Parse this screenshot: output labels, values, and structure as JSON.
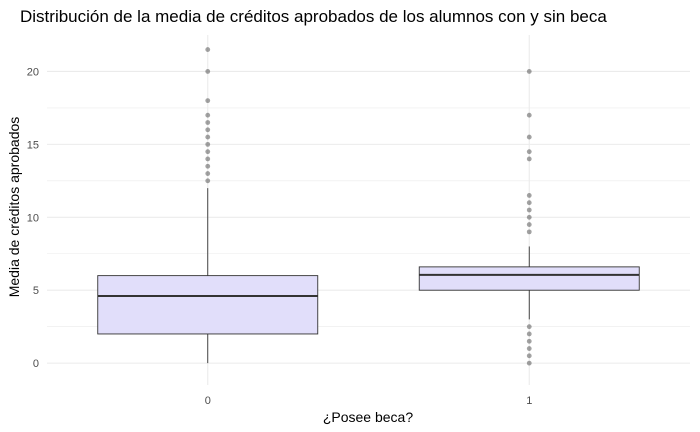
{
  "chart_data": {
    "type": "boxplot",
    "title": "Distribución de la media de créditos aprobados de los alumnos con y sin beca",
    "xlabel": "¿Posee beca?",
    "ylabel": "Media de créditos aprobados",
    "categories": [
      "0",
      "1"
    ],
    "ylim": [
      -1.5,
      22.5
    ],
    "yticks": [
      0,
      5,
      10,
      15,
      20
    ],
    "grid": true,
    "colors": {
      "box_fill": "#e1defa",
      "box_stroke": "#333333",
      "median": "#333333",
      "outlier": "#333333",
      "grid": "#ebebeb"
    },
    "boxes": [
      {
        "category": "0",
        "min": 0,
        "q1": 2,
        "median": 4.6,
        "q3": 6,
        "max": 12,
        "outliers": [
          12.5,
          13,
          13.5,
          14,
          14.5,
          15,
          15.5,
          16,
          16.5,
          17,
          18,
          20,
          21.5
        ]
      },
      {
        "category": "1",
        "min": 3,
        "q1": 5,
        "median": 6.05,
        "q3": 6.6,
        "max": 8,
        "outliers": [
          0,
          0.5,
          1,
          1.5,
          2,
          2.5,
          9,
          9.5,
          10,
          10.5,
          11,
          11.5,
          14,
          14.5,
          15.5,
          17,
          20
        ]
      }
    ]
  }
}
